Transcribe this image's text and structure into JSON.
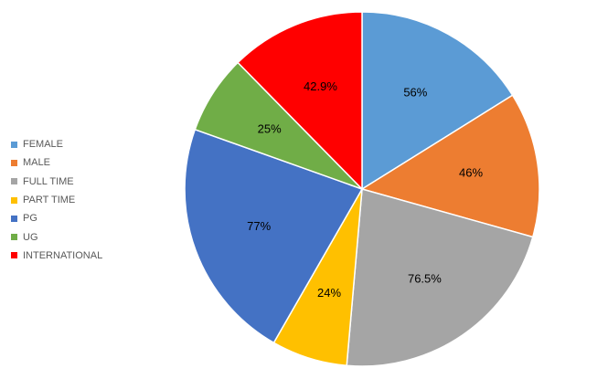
{
  "chart_data": {
    "type": "pie",
    "title": "",
    "legend_position": "left",
    "start_angle_deg": 0,
    "direction": "clockwise",
    "slices": [
      {
        "label": "FEMALE",
        "value": 56,
        "display": "56%",
        "color": "#5b9bd5"
      },
      {
        "label": "MALE",
        "value": 46,
        "display": "46%",
        "color": "#ed7d31"
      },
      {
        "label": "FULL TIME",
        "value": 76.5,
        "display": "76.5%",
        "color": "#a5a5a5"
      },
      {
        "label": "PART TIME",
        "value": 24,
        "display": "24%",
        "color": "#ffc000"
      },
      {
        "label": "PG",
        "value": 77,
        "display": "77%",
        "color": "#4472c4"
      },
      {
        "label": "UG",
        "value": 25,
        "display": "25%",
        "color": "#70ad47"
      },
      {
        "label": "INTERNATIONAL",
        "value": 42.9,
        "display": "42.9%",
        "color": "#ff0000"
      }
    ]
  }
}
